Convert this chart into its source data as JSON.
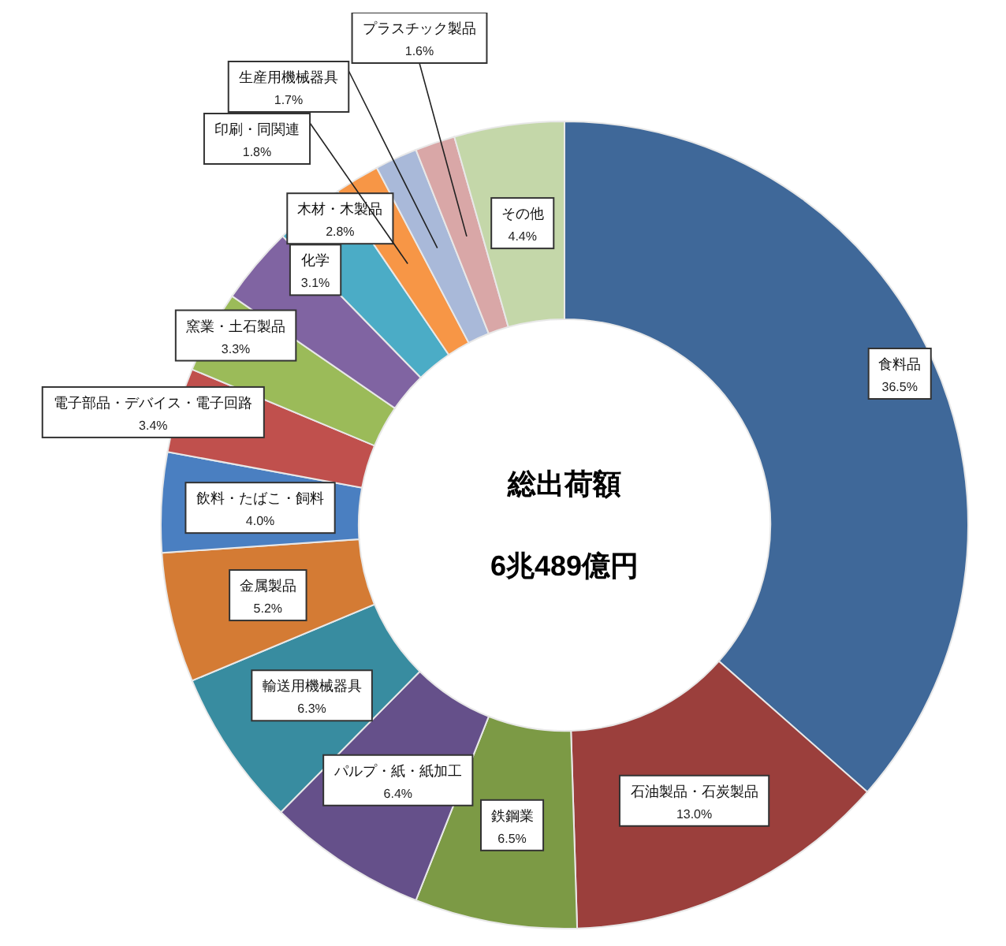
{
  "chart_data": {
    "type": "donut",
    "title": "総出荷額",
    "subtitle": "6兆489億円",
    "categories": [
      "食料品",
      "石油製品・石炭製品",
      "鉄鋼業",
      "パルプ・紙・紙加工",
      "輸送用機械器具",
      "金属製品",
      "飲料・たばこ・飼料",
      "電子部品・デバイス・電子回路",
      "窯業・土石製品",
      "化学",
      "木材・木製品",
      "印刷・同関連",
      "生産用機械器具",
      "プラスチック製品",
      "その他"
    ],
    "values": [
      36.5,
      13.0,
      6.5,
      6.4,
      6.3,
      5.2,
      4.0,
      3.4,
      3.3,
      3.1,
      2.8,
      1.8,
      1.7,
      1.6,
      4.4
    ],
    "value_labels": [
      "36.5%",
      "13.0%",
      "6.5%",
      "6.4%",
      "6.3%",
      "5.2%",
      "4.0%",
      "3.4%",
      "3.3%",
      "3.1%",
      "2.8%",
      "1.8%",
      "1.7%",
      "1.6%",
      "4.4%"
    ],
    "colors": [
      "#3f6899",
      "#9b3f3c",
      "#7c9a45",
      "#65508a",
      "#388ca0",
      "#d47b34",
      "#4a7fc1",
      "#c0504d",
      "#9bbb59",
      "#8064a2",
      "#4bacc6",
      "#f79646",
      "#a9b9d9",
      "#d9a7a7",
      "#c4d7a9"
    ]
  }
}
